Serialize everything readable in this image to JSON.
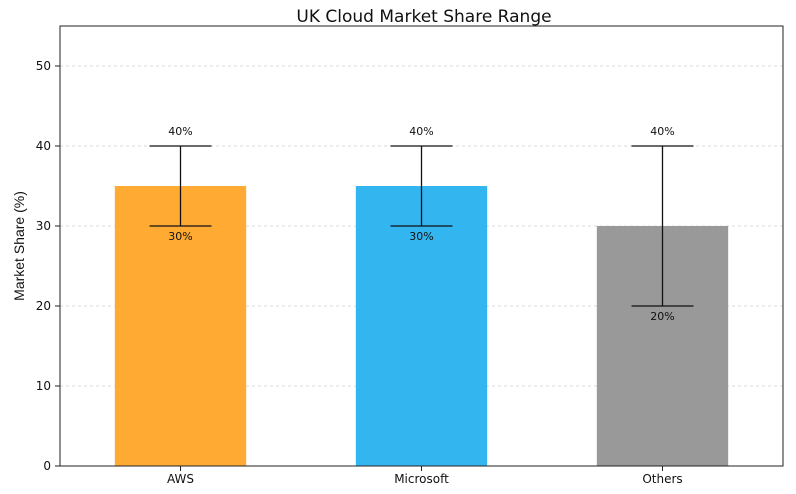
{
  "chart_data": {
    "type": "bar",
    "title": "UK Cloud Market Share Range",
    "xlabel": "",
    "ylabel": "Market Share (%)",
    "ylim": [
      0,
      55
    ],
    "yticks": [
      0,
      10,
      20,
      30,
      40,
      50
    ],
    "grid": true,
    "categories": [
      "AWS",
      "Microsoft",
      "Others"
    ],
    "values": [
      35,
      35,
      30
    ],
    "range_low": [
      30,
      30,
      20
    ],
    "range_high": [
      40,
      40,
      40
    ],
    "low_labels": [
      "30%",
      "30%",
      "20%"
    ],
    "high_labels": [
      "40%",
      "40%",
      "40%"
    ],
    "colors": [
      "#ffaa33",
      "#33b5f0",
      "#999999"
    ]
  }
}
